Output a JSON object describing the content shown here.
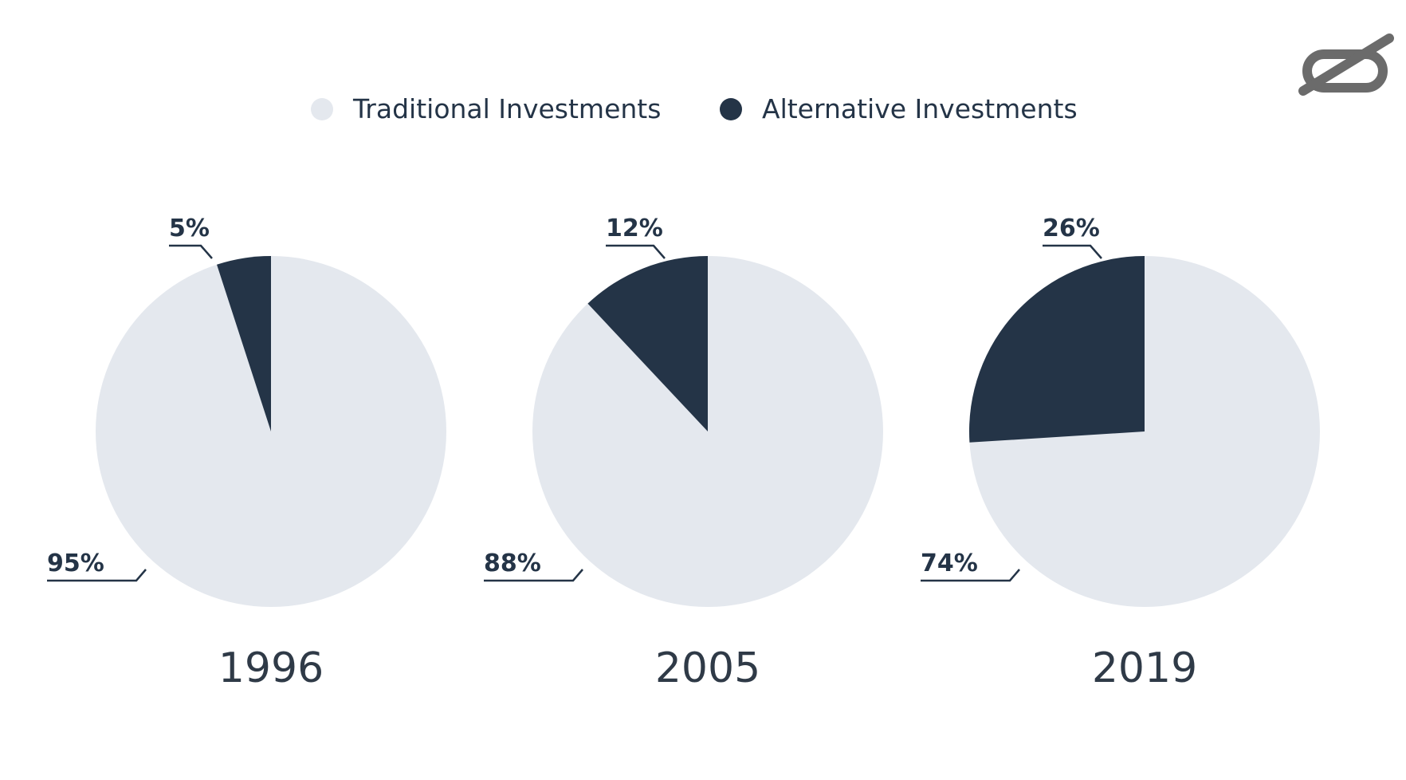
{
  "legend": [
    {
      "label": "Traditional Investments",
      "color": "#e4e8ee"
    },
    {
      "label": "Alternative Investments",
      "color": "#243447"
    }
  ],
  "logo_icon": "slashed-zero-logo-icon",
  "colors": {
    "traditional": "#e4e8ee",
    "alternative": "#243447",
    "text": "#243447",
    "year_text": "#2f3a47"
  },
  "chart_data": [
    {
      "type": "pie",
      "title": "1996",
      "legend_placement": "top-center",
      "slices": [
        {
          "name": "Alternative Investments",
          "value": 5,
          "label": "5%"
        },
        {
          "name": "Traditional Investments",
          "value": 95,
          "label": "95%"
        }
      ]
    },
    {
      "type": "pie",
      "title": "2005",
      "legend_placement": "top-center",
      "slices": [
        {
          "name": "Alternative Investments",
          "value": 12,
          "label": "12%"
        },
        {
          "name": "Traditional Investments",
          "value": 88,
          "label": "88%"
        }
      ]
    },
    {
      "type": "pie",
      "title": "2019",
      "legend_placement": "top-center",
      "slices": [
        {
          "name": "Alternative Investments",
          "value": 26,
          "label": "26%"
        },
        {
          "name": "Traditional Investments",
          "value": 74,
          "label": "74%"
        }
      ]
    }
  ]
}
